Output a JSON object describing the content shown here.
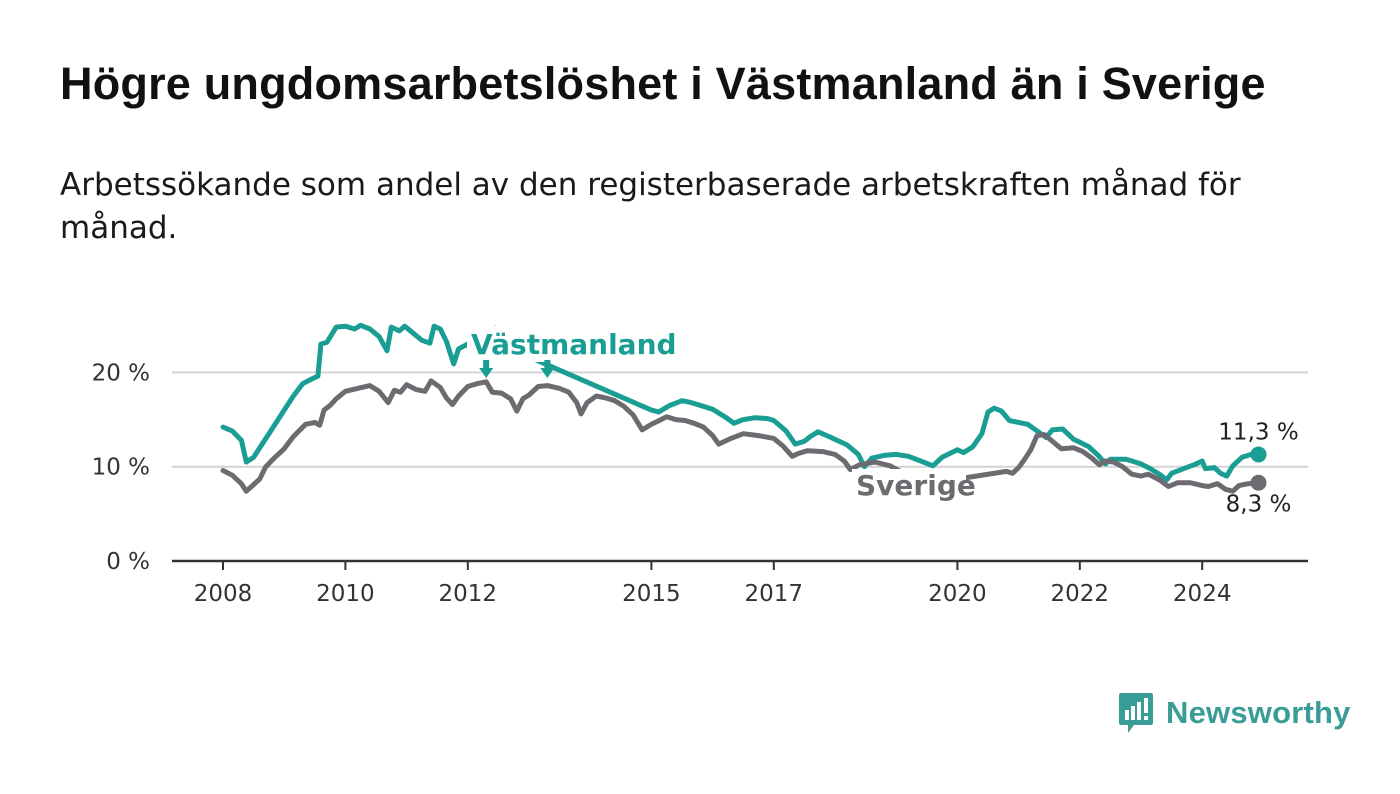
{
  "title": "Högre ungdomsarbetslöshet i Västmanland än i Sverige",
  "subtitle": "Arbetssökande som andel av den registerbaserade arbetskraften månad för månad.",
  "brand": {
    "name": "Newsworthy",
    "icon": "newsworthy-logo-icon",
    "color": "#3a9c96"
  },
  "chart_data": {
    "type": "line",
    "title": "Högre ungdomsarbetslöshet i Västmanland än i Sverige",
    "subtitle": "Arbetssökande som andel av den registerbaserade arbetskraften månad för månad.",
    "xlabel": "",
    "ylabel": "",
    "xlim": [
      2008.0,
      2025.25
    ],
    "ylim": [
      0,
      25
    ],
    "x_ticks": [
      {
        "value": 2008,
        "label": "2008"
      },
      {
        "value": 2010,
        "label": "2010"
      },
      {
        "value": 2012,
        "label": "2012"
      },
      {
        "value": 2015,
        "label": "2015"
      },
      {
        "value": 2017,
        "label": "2017"
      },
      {
        "value": 2020,
        "label": "2020"
      },
      {
        "value": 2022,
        "label": "2022"
      },
      {
        "value": 2024,
        "label": "2024"
      }
    ],
    "y_ticks": [
      {
        "value": 0,
        "label": "0 %"
      },
      {
        "value": 10,
        "label": "10 %"
      },
      {
        "value": 20,
        "label": "20 %"
      }
    ],
    "grid": true,
    "series": [
      {
        "name": "Västmanland",
        "color": "#1a9e94",
        "end_label": "11,3 %",
        "points": [
          [
            2008.0,
            14.2
          ],
          [
            2008.15,
            13.8
          ],
          [
            2008.3,
            12.8
          ],
          [
            2008.38,
            10.5
          ],
          [
            2008.5,
            11.0
          ],
          [
            2008.65,
            12.5
          ],
          [
            2008.8,
            14.0
          ],
          [
            2009.0,
            16.0
          ],
          [
            2009.15,
            17.5
          ],
          [
            2009.3,
            18.8
          ],
          [
            2009.45,
            19.3
          ],
          [
            2009.55,
            19.6
          ],
          [
            2009.6,
            23.0
          ],
          [
            2009.7,
            23.2
          ],
          [
            2009.85,
            24.8
          ],
          [
            2010.0,
            24.9
          ],
          [
            2010.15,
            24.6
          ],
          [
            2010.25,
            25.0
          ],
          [
            2010.4,
            24.6
          ],
          [
            2010.55,
            23.8
          ],
          [
            2010.68,
            22.3
          ],
          [
            2010.75,
            24.8
          ],
          [
            2010.88,
            24.4
          ],
          [
            2010.97,
            24.9
          ],
          [
            2011.1,
            24.2
          ],
          [
            2011.25,
            23.4
          ],
          [
            2011.38,
            23.1
          ],
          [
            2011.45,
            24.9
          ],
          [
            2011.55,
            24.6
          ],
          [
            2011.65,
            23.3
          ],
          [
            2011.77,
            20.9
          ],
          [
            2011.85,
            22.5
          ],
          [
            2012.0,
            23.0
          ],
          [
            2012.1,
            23.9
          ],
          [
            2012.3,
            24.0
          ],
          [
            2012.45,
            24.7
          ],
          [
            2012.52,
            23.0
          ],
          [
            2015.0,
            16.0
          ],
          [
            2015.12,
            15.8
          ],
          [
            2015.3,
            16.5
          ],
          [
            2015.5,
            17.0
          ],
          [
            2015.65,
            16.8
          ],
          [
            2015.85,
            16.4
          ],
          [
            2016.0,
            16.1
          ],
          [
            2016.2,
            15.3
          ],
          [
            2016.35,
            14.6
          ],
          [
            2016.5,
            15.0
          ],
          [
            2016.7,
            15.2
          ],
          [
            2016.9,
            15.1
          ],
          [
            2017.0,
            14.9
          ],
          [
            2017.2,
            13.8
          ],
          [
            2017.35,
            12.4
          ],
          [
            2017.5,
            12.7
          ],
          [
            2017.6,
            13.2
          ],
          [
            2017.72,
            13.7
          ],
          [
            2017.9,
            13.2
          ],
          [
            2018.0,
            12.9
          ],
          [
            2018.2,
            12.3
          ],
          [
            2018.38,
            11.3
          ],
          [
            2018.48,
            10.0
          ],
          [
            2018.6,
            10.9
          ],
          [
            2018.8,
            11.2
          ],
          [
            2019.0,
            11.3
          ],
          [
            2019.2,
            11.1
          ],
          [
            2019.4,
            10.6
          ],
          [
            2019.6,
            10.1
          ],
          [
            2019.75,
            11.0
          ],
          [
            2020.0,
            11.8
          ],
          [
            2020.1,
            11.5
          ],
          [
            2020.25,
            12.1
          ],
          [
            2020.4,
            13.5
          ],
          [
            2020.5,
            15.8
          ],
          [
            2020.6,
            16.2
          ],
          [
            2020.72,
            15.9
          ],
          [
            2020.85,
            14.9
          ],
          [
            2021.0,
            14.7
          ],
          [
            2021.15,
            14.5
          ],
          [
            2021.3,
            13.8
          ],
          [
            2021.45,
            13.1
          ],
          [
            2021.55,
            13.9
          ],
          [
            2021.72,
            14.0
          ],
          [
            2021.9,
            12.9
          ],
          [
            2022.0,
            12.6
          ],
          [
            2022.15,
            12.1
          ],
          [
            2022.3,
            11.2
          ],
          [
            2022.42,
            10.3
          ],
          [
            2022.5,
            10.8
          ],
          [
            2022.75,
            10.8
          ],
          [
            2022.85,
            10.6
          ],
          [
            2023.0,
            10.3
          ],
          [
            2023.15,
            9.8
          ],
          [
            2023.3,
            9.2
          ],
          [
            2023.42,
            8.6
          ],
          [
            2023.5,
            9.3
          ],
          [
            2023.7,
            9.8
          ],
          [
            2023.9,
            10.3
          ],
          [
            2024.0,
            10.6
          ],
          [
            2024.05,
            9.8
          ],
          [
            2024.2,
            9.9
          ],
          [
            2024.3,
            9.3
          ],
          [
            2024.4,
            9.0
          ],
          [
            2024.5,
            10.1
          ],
          [
            2024.65,
            11.0
          ],
          [
            2024.8,
            11.3
          ],
          [
            2024.92,
            11.3
          ]
        ]
      },
      {
        "name": "Sverige",
        "color": "#6e6b70",
        "end_label": "8,3 %",
        "points": [
          [
            2008.0,
            9.6
          ],
          [
            2008.15,
            9.1
          ],
          [
            2008.3,
            8.2
          ],
          [
            2008.38,
            7.4
          ],
          [
            2008.5,
            8.1
          ],
          [
            2008.6,
            8.7
          ],
          [
            2008.7,
            10.0
          ],
          [
            2008.85,
            11.0
          ],
          [
            2009.0,
            11.9
          ],
          [
            2009.15,
            13.2
          ],
          [
            2009.35,
            14.5
          ],
          [
            2009.5,
            14.7
          ],
          [
            2009.58,
            14.4
          ],
          [
            2009.65,
            16.0
          ],
          [
            2009.75,
            16.5
          ],
          [
            2009.85,
            17.2
          ],
          [
            2010.0,
            18.0
          ],
          [
            2010.2,
            18.3
          ],
          [
            2010.4,
            18.6
          ],
          [
            2010.55,
            18.0
          ],
          [
            2010.7,
            16.8
          ],
          [
            2010.8,
            18.1
          ],
          [
            2010.9,
            17.9
          ],
          [
            2011.0,
            18.7
          ],
          [
            2011.15,
            18.2
          ],
          [
            2011.3,
            18.0
          ],
          [
            2011.4,
            19.1
          ],
          [
            2011.55,
            18.4
          ],
          [
            2011.65,
            17.3
          ],
          [
            2011.75,
            16.6
          ],
          [
            2011.85,
            17.5
          ],
          [
            2012.0,
            18.5
          ],
          [
            2012.15,
            18.8
          ],
          [
            2012.3,
            19.0
          ],
          [
            2012.4,
            17.9
          ],
          [
            2012.55,
            17.8
          ],
          [
            2012.7,
            17.2
          ],
          [
            2012.8,
            15.9
          ],
          [
            2012.9,
            17.2
          ],
          [
            2013.0,
            17.6
          ],
          [
            2013.15,
            18.5
          ],
          [
            2013.3,
            18.6
          ],
          [
            2013.5,
            18.3
          ],
          [
            2013.65,
            17.9
          ],
          [
            2013.78,
            16.8
          ],
          [
            2013.85,
            15.6
          ],
          [
            2013.95,
            16.8
          ],
          [
            2014.1,
            17.5
          ],
          [
            2014.25,
            17.3
          ],
          [
            2014.4,
            17.0
          ],
          [
            2014.55,
            16.4
          ],
          [
            2014.7,
            15.5
          ],
          [
            2014.85,
            13.9
          ],
          [
            2015.0,
            14.5
          ],
          [
            2015.1,
            14.8
          ],
          [
            2015.25,
            15.3
          ],
          [
            2015.4,
            15.0
          ],
          [
            2015.55,
            14.9
          ],
          [
            2015.7,
            14.6
          ],
          [
            2015.85,
            14.2
          ],
          [
            2016.0,
            13.3
          ],
          [
            2016.1,
            12.4
          ],
          [
            2016.3,
            13.0
          ],
          [
            2016.5,
            13.5
          ],
          [
            2016.75,
            13.3
          ],
          [
            2017.0,
            13.0
          ],
          [
            2017.15,
            12.2
          ],
          [
            2017.3,
            11.1
          ],
          [
            2017.4,
            11.4
          ],
          [
            2017.55,
            11.7
          ],
          [
            2017.8,
            11.6
          ],
          [
            2018.0,
            11.3
          ],
          [
            2018.15,
            10.6
          ],
          [
            2018.25,
            9.7
          ],
          [
            2018.4,
            10.2
          ],
          [
            2018.65,
            10.5
          ],
          [
            2018.9,
            10.1
          ],
          [
            2019.1,
            9.4
          ],
          [
            2019.3,
            8.7
          ],
          [
            2019.42,
            8.1
          ],
          [
            2020.8,
            9.5
          ],
          [
            2020.9,
            9.3
          ],
          [
            2021.0,
            9.9
          ],
          [
            2021.1,
            10.8
          ],
          [
            2021.2,
            11.8
          ],
          [
            2021.3,
            13.3
          ],
          [
            2021.42,
            13.4
          ],
          [
            2021.55,
            12.7
          ],
          [
            2021.7,
            11.9
          ],
          [
            2021.9,
            12.0
          ],
          [
            2022.05,
            11.6
          ],
          [
            2022.2,
            10.9
          ],
          [
            2022.32,
            10.2
          ],
          [
            2022.42,
            10.6
          ],
          [
            2022.55,
            10.5
          ],
          [
            2022.7,
            10.0
          ],
          [
            2022.85,
            9.2
          ],
          [
            2023.0,
            9.0
          ],
          [
            2023.12,
            9.2
          ],
          [
            2023.3,
            8.6
          ],
          [
            2023.45,
            7.9
          ],
          [
            2023.6,
            8.3
          ],
          [
            2023.8,
            8.3
          ],
          [
            2024.0,
            8.0
          ],
          [
            2024.1,
            7.9
          ],
          [
            2024.25,
            8.2
          ],
          [
            2024.38,
            7.6
          ],
          [
            2024.5,
            7.4
          ],
          [
            2024.6,
            8.0
          ],
          [
            2024.75,
            8.2
          ],
          [
            2024.92,
            8.3
          ]
        ]
      }
    ],
    "label_arrows": [
      2012.3,
      2013.3
    ]
  }
}
